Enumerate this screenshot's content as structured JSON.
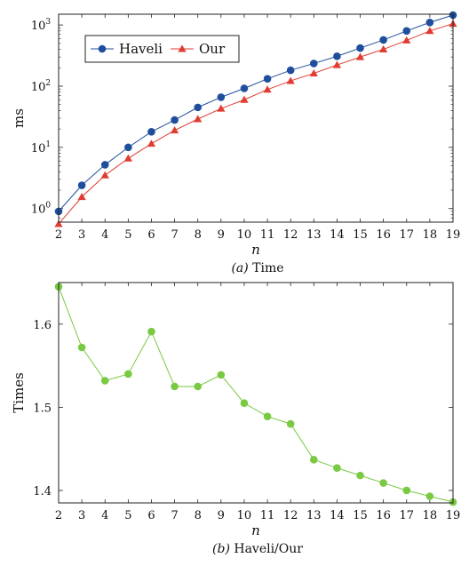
{
  "chart_data": [
    {
      "type": "line",
      "xlabel": "n",
      "ylabel": "ms",
      "yscale": "log",
      "ylim": [
        0.6,
        1500
      ],
      "xlim": [
        2,
        19
      ],
      "x": [
        2,
        3,
        4,
        5,
        6,
        7,
        8,
        9,
        10,
        11,
        12,
        13,
        14,
        15,
        16,
        17,
        18,
        19
      ],
      "y_ticks": [
        {
          "value": 1,
          "base": "10",
          "exp": "0"
        },
        {
          "value": 10,
          "base": "10",
          "exp": "1"
        },
        {
          "value": 100,
          "base": "10",
          "exp": "2"
        },
        {
          "value": 1000,
          "base": "10",
          "exp": "3"
        }
      ],
      "legend_position": "top-left",
      "series": [
        {
          "name": "Haveli",
          "color": "#1f4e9c",
          "marker": "circle",
          "values": [
            0.9,
            2.4,
            5.2,
            10,
            18,
            28,
            45,
            66,
            92,
            132,
            182,
            235,
            308,
            420,
            570,
            800,
            1100,
            1450
          ]
        },
        {
          "name": "Our",
          "color": "#e03c31",
          "marker": "triangle",
          "values": [
            0.56,
            1.55,
            3.5,
            6.6,
            11.5,
            19,
            29,
            43,
            60,
            88,
            122,
            162,
            222,
            300,
            400,
            560,
            800,
            1050
          ]
        }
      ],
      "caption": {
        "label": "(a)",
        "text": " Time"
      }
    },
    {
      "type": "line",
      "xlabel": "n",
      "ylabel": "Times",
      "ylim": [
        1.385,
        1.65
      ],
      "xlim": [
        2,
        19
      ],
      "x": [
        2,
        3,
        4,
        5,
        6,
        7,
        8,
        9,
        10,
        11,
        12,
        13,
        14,
        15,
        16,
        17,
        18,
        19
      ],
      "y_ticks": [
        "1.4",
        "1.5",
        "1.6"
      ],
      "series": [
        {
          "color": "#7ac943",
          "marker": "circle",
          "values": [
            1.645,
            1.572,
            1.532,
            1.54,
            1.591,
            1.525,
            1.525,
            1.539,
            1.505,
            1.489,
            1.48,
            1.437,
            1.427,
            1.418,
            1.409,
            1.4,
            1.393,
            1.386
          ]
        }
      ],
      "caption": {
        "label": "(b)",
        "text": " Haveli/Our"
      }
    }
  ]
}
